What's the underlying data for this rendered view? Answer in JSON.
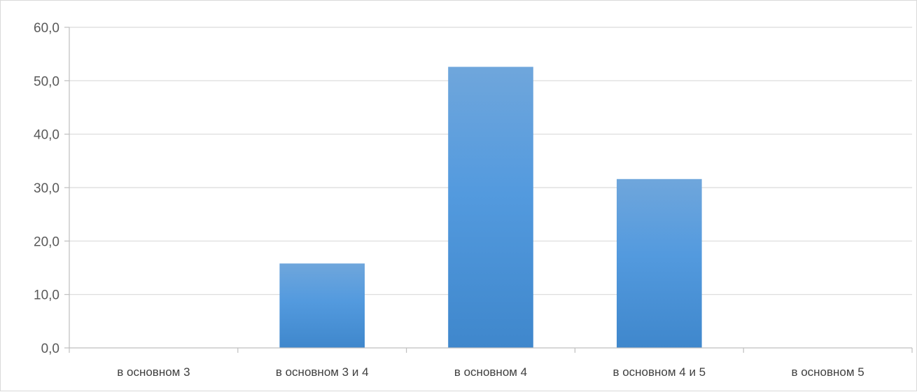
{
  "chart_data": {
    "type": "bar",
    "categories": [
      "в основном 3",
      "в основном 3 и 4",
      "в основном 4",
      "в основном 4 и 5",
      "в основном 5"
    ],
    "values": [
      0.0,
      15.8,
      52.6,
      31.6,
      0.0
    ],
    "ylim": [
      0,
      60
    ],
    "yticks": [
      0,
      10,
      20,
      30,
      40,
      50,
      60
    ],
    "ytick_labels": [
      "0,0",
      "10,0",
      "20,0",
      "30,0",
      "40,0",
      "50,0",
      "60,0"
    ],
    "grid": true,
    "legend": "none",
    "colors": {
      "bar_top": "#6fa6dc",
      "bar_bottom": "#3f87cc",
      "grid": "#d9d9d9",
      "axis": "#bfbfbf"
    }
  }
}
